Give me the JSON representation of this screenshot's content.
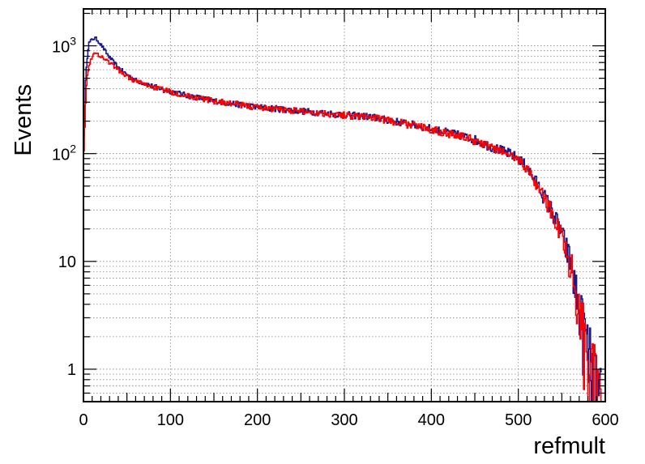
{
  "chart_data": {
    "type": "line",
    "xlabel": "refmult",
    "ylabel": "Events",
    "xlim": [
      0,
      600
    ],
    "ylim": [
      0.5,
      2200
    ],
    "yscale": "log",
    "grid": true,
    "xticks": [
      {
        "value": 0,
        "label": "0"
      },
      {
        "value": 100,
        "label": "100"
      },
      {
        "value": 200,
        "label": "200"
      },
      {
        "value": 300,
        "label": "300"
      },
      {
        "value": 400,
        "label": "400"
      },
      {
        "value": 500,
        "label": "500"
      },
      {
        "value": 600,
        "label": "600"
      }
    ],
    "yticks": [
      {
        "value": 1,
        "label": "1"
      },
      {
        "value": 10,
        "label": "10"
      },
      {
        "value": 100,
        "base": "10",
        "exp": "2"
      },
      {
        "value": 1000,
        "base": "10",
        "exp": "3"
      }
    ],
    "series": [
      {
        "color": "#1a1a8c",
        "points": [
          [
            0,
            120
          ],
          [
            3,
            600
          ],
          [
            6,
            1050
          ],
          [
            10,
            1150
          ],
          [
            14,
            1180
          ],
          [
            18,
            1080
          ],
          [
            22,
            980
          ],
          [
            26,
            870
          ],
          [
            30,
            780
          ],
          [
            40,
            630
          ],
          [
            50,
            540
          ],
          [
            60,
            480
          ],
          [
            80,
            420
          ],
          [
            100,
            380
          ],
          [
            120,
            345
          ],
          [
            150,
            310
          ],
          [
            180,
            285
          ],
          [
            200,
            270
          ],
          [
            230,
            258
          ],
          [
            260,
            245
          ],
          [
            300,
            230
          ],
          [
            330,
            220
          ],
          [
            350,
            205
          ],
          [
            380,
            185
          ],
          [
            400,
            170
          ],
          [
            430,
            150
          ],
          [
            450,
            135
          ],
          [
            470,
            115
          ],
          [
            490,
            100
          ],
          [
            500,
            90
          ],
          [
            510,
            75
          ],
          [
            520,
            55
          ],
          [
            530,
            40
          ],
          [
            540,
            28
          ],
          [
            550,
            18
          ],
          [
            560,
            10
          ],
          [
            565,
            6
          ],
          [
            570,
            4
          ],
          [
            575,
            2.5
          ],
          [
            580,
            1.5
          ],
          [
            585,
            1
          ],
          [
            590,
            0.6
          ],
          [
            595,
            0.5
          ]
        ]
      },
      {
        "color": "#ff0000",
        "points": [
          [
            0,
            90
          ],
          [
            3,
            400
          ],
          [
            6,
            650
          ],
          [
            10,
            800
          ],
          [
            14,
            850
          ],
          [
            18,
            820
          ],
          [
            22,
            780
          ],
          [
            26,
            740
          ],
          [
            30,
            700
          ],
          [
            40,
            600
          ],
          [
            50,
            520
          ],
          [
            60,
            470
          ],
          [
            80,
            415
          ],
          [
            100,
            375
          ],
          [
            120,
            342
          ],
          [
            150,
            308
          ],
          [
            180,
            283
          ],
          [
            200,
            268
          ],
          [
            230,
            256
          ],
          [
            260,
            243
          ],
          [
            300,
            228
          ],
          [
            330,
            218
          ],
          [
            350,
            203
          ],
          [
            380,
            183
          ],
          [
            400,
            168
          ],
          [
            430,
            148
          ],
          [
            450,
            133
          ],
          [
            470,
            113
          ],
          [
            490,
            98
          ],
          [
            500,
            88
          ],
          [
            510,
            73
          ],
          [
            520,
            54
          ],
          [
            530,
            39
          ],
          [
            540,
            27
          ],
          [
            550,
            17
          ],
          [
            560,
            10
          ],
          [
            565,
            6
          ],
          [
            570,
            3.8
          ],
          [
            575,
            2.4
          ],
          [
            580,
            1.5
          ],
          [
            585,
            1
          ],
          [
            590,
            0.65
          ],
          [
            595,
            0.5
          ]
        ]
      }
    ]
  }
}
